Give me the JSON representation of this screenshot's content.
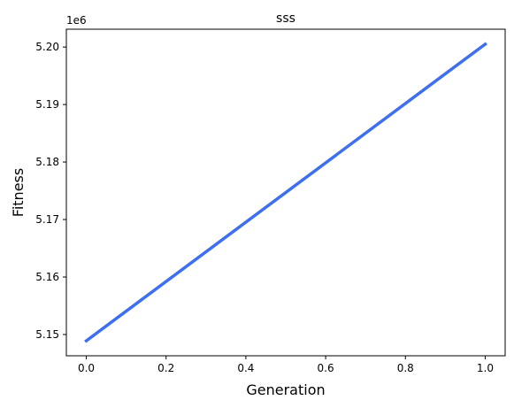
{
  "chart_data": {
    "type": "line",
    "title": "sss",
    "xlabel": "Generation",
    "ylabel": "Fitness",
    "y_offset_label": "1e6",
    "x": [
      0,
      1
    ],
    "series": [
      {
        "values": [
          5.1489,
          5.2005
        ],
        "color": "#3e6fef"
      }
    ],
    "xlim": [
      -0.05,
      1.05
    ],
    "ylim": [
      5.1463,
      5.2031
    ],
    "x_ticks": [
      0.0,
      0.2,
      0.4,
      0.6,
      0.8,
      1.0
    ],
    "x_tick_labels": [
      "0.0",
      "0.2",
      "0.4",
      "0.6",
      "0.8",
      "1.0"
    ],
    "y_ticks": [
      5.15,
      5.16,
      5.17,
      5.18,
      5.19,
      5.2
    ],
    "y_tick_labels": [
      "5.15",
      "5.16",
      "5.17",
      "5.18",
      "5.19",
      "5.20"
    ],
    "grid": false,
    "legend": "none"
  }
}
